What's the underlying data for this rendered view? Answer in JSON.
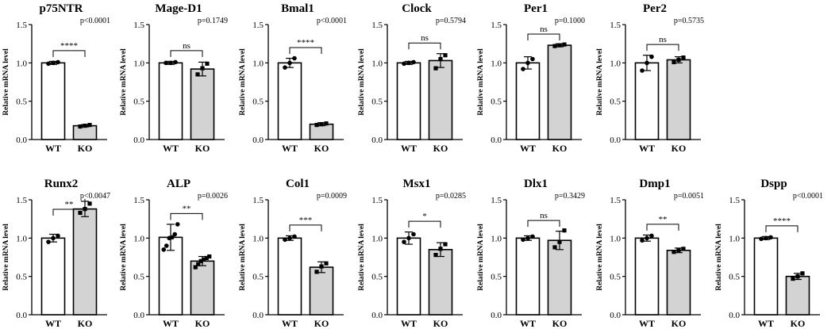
{
  "figure_ylabel": "Relative mRNA  level",
  "chart_data": [
    {
      "type": "bar",
      "title": "p75NTR",
      "categories": [
        "WT",
        "KO"
      ],
      "values": [
        1.0,
        0.18
      ],
      "errors": [
        0.02,
        0.015
      ],
      "points": [
        [
          0.99,
          1.0,
          1.01
        ],
        [
          0.17,
          0.18,
          0.19
        ]
      ],
      "ylim": [
        0,
        1.5
      ],
      "yticks": [
        "0.0",
        "0.5",
        "1.0",
        "1.5"
      ],
      "sig": "****",
      "pvalue": "p<0.0001",
      "ylabel": "Relative mRNA  level"
    },
    {
      "type": "bar",
      "title": "Mage-D1",
      "categories": [
        "WT",
        "KO"
      ],
      "values": [
        1.0,
        0.92
      ],
      "errors": [
        0.02,
        0.09
      ],
      "points": [
        [
          1.0,
          1.0,
          1.01
        ],
        [
          0.85,
          0.93,
          0.99
        ]
      ],
      "ylim": [
        0,
        1.5
      ],
      "yticks": [
        "0.0",
        "0.5",
        "1.0",
        "1.5"
      ],
      "sig": "ns",
      "pvalue": "p=0.1749",
      "ylabel": "Relative mRNA  level"
    },
    {
      "type": "bar",
      "title": "Bmal1",
      "categories": [
        "WT",
        "KO"
      ],
      "values": [
        1.0,
        0.2
      ],
      "errors": [
        0.06,
        0.02
      ],
      "points": [
        [
          0.94,
          1.0,
          1.06
        ],
        [
          0.19,
          0.2,
          0.21
        ]
      ],
      "ylim": [
        0,
        1.5
      ],
      "yticks": [
        "0.0",
        "0.5",
        "1.0",
        "1.5"
      ],
      "sig": "****",
      "pvalue": "p<0.0001",
      "ylabel": "Relative mRNA  level"
    },
    {
      "type": "bar",
      "title": "Clock",
      "categories": [
        "WT",
        "KO"
      ],
      "values": [
        1.0,
        1.03
      ],
      "errors": [
        0.02,
        0.09
      ],
      "points": [
        [
          0.99,
          1.0,
          1.01
        ],
        [
          0.93,
          1.05,
          1.1
        ]
      ],
      "ylim": [
        0,
        1.5
      ],
      "yticks": [
        "0.0",
        "0.5",
        "1.0",
        "1.5"
      ],
      "sig": "ns",
      "pvalue": "p=0.5794",
      "ylabel": "Relative mRNA  level"
    },
    {
      "type": "bar",
      "title": "Per1",
      "categories": [
        "WT",
        "KO"
      ],
      "values": [
        1.0,
        1.23
      ],
      "errors": [
        0.08,
        0.02
      ],
      "points": [
        [
          0.92,
          1.0,
          1.05
        ],
        [
          1.22,
          1.23,
          1.24
        ]
      ],
      "ylim": [
        0,
        1.5
      ],
      "yticks": [
        "0.0",
        "0.5",
        "1.0",
        "1.5"
      ],
      "sig": "ns",
      "pvalue": "p=0.1000",
      "ylabel": "Relative mRNA  level"
    },
    {
      "type": "bar",
      "title": "Per2",
      "categories": [
        "WT",
        "KO"
      ],
      "values": [
        1.0,
        1.04
      ],
      "errors": [
        0.1,
        0.04
      ],
      "points": [
        [
          0.9,
          1.0,
          1.08
        ],
        [
          1.01,
          1.04,
          1.07
        ]
      ],
      "ylim": [
        0,
        1.5
      ],
      "yticks": [
        "0.0",
        "0.5",
        "1.0",
        "1.5"
      ],
      "sig": "ns",
      "pvalue": "p=0.5735",
      "ylabel": "Relative mRNA  level"
    },
    {
      "type": "bar",
      "title": "Runx2",
      "categories": [
        "WT",
        "KO"
      ],
      "values": [
        1.0,
        1.38
      ],
      "errors": [
        0.05,
        0.1
      ],
      "points": [
        [
          0.95,
          1.0,
          1.03
        ],
        [
          1.33,
          1.38,
          1.45
        ]
      ],
      "ylim": [
        0,
        1.5
      ],
      "yticks": [
        "0.0",
        "0.5",
        "1.0",
        "1.5"
      ],
      "sig": "**",
      "pvalue": "p<0.0047",
      "ylabel": "Relative mRNA  level"
    },
    {
      "type": "bar",
      "title": "ALP",
      "categories": [
        "WT",
        "KO"
      ],
      "values": [
        1.01,
        0.7
      ],
      "errors": [
        0.17,
        0.06
      ],
      "points": [
        [
          0.85,
          0.9,
          1.0,
          1.01,
          1.05,
          1.18
        ],
        [
          0.62,
          0.66,
          0.7,
          0.72,
          0.74,
          0.76
        ]
      ],
      "ylim": [
        0,
        1.5
      ],
      "yticks": [
        "0.0",
        "0.5",
        "1.0",
        "1.5"
      ],
      "sig": "**",
      "pvalue": "p=0.0026",
      "ylabel": "Relative mRNA  level"
    },
    {
      "type": "bar",
      "title": "Col1",
      "categories": [
        "WT",
        "KO"
      ],
      "values": [
        1.0,
        0.62
      ],
      "errors": [
        0.03,
        0.07
      ],
      "points": [
        [
          0.98,
          1.0,
          1.02
        ],
        [
          0.56,
          0.63,
          0.67
        ]
      ],
      "ylim": [
        0,
        1.5
      ],
      "yticks": [
        "0.0",
        "0.5",
        "1.0",
        "1.5"
      ],
      "sig": "***",
      "pvalue": "p=0.0009",
      "ylabel": "Relative mRNA  level"
    },
    {
      "type": "bar",
      "title": "Msx1",
      "categories": [
        "WT",
        "KO"
      ],
      "values": [
        1.0,
        0.85
      ],
      "errors": [
        0.08,
        0.09
      ],
      "points": [
        [
          0.95,
          1.0,
          1.05
        ],
        [
          0.78,
          0.86,
          0.92
        ]
      ],
      "ylim": [
        0,
        1.5
      ],
      "yticks": [
        "0.0",
        "0.5",
        "1.0",
        "1.5"
      ],
      "sig": "*",
      "pvalue": "p=0.0285",
      "ylabel": "Relative mRNA  level"
    },
    {
      "type": "bar",
      "title": "Dlx1",
      "categories": [
        "WT",
        "KO"
      ],
      "values": [
        1.0,
        0.97
      ],
      "errors": [
        0.03,
        0.12
      ],
      "points": [
        [
          0.98,
          1.0,
          1.02
        ],
        [
          0.88,
          0.95,
          1.1
        ]
      ],
      "ylim": [
        0,
        1.5
      ],
      "yticks": [
        "0.0",
        "0.5",
        "1.0",
        "1.5"
      ],
      "sig": "ns",
      "pvalue": "p=0.3429",
      "ylabel": "Relative mRNA  level"
    },
    {
      "type": "bar",
      "title": "Dmp1",
      "categories": [
        "WT",
        "KO"
      ],
      "values": [
        1.0,
        0.84
      ],
      "errors": [
        0.04,
        0.03
      ],
      "points": [
        [
          0.97,
          1.0,
          1.03
        ],
        [
          0.82,
          0.84,
          0.86
        ]
      ],
      "ylim": [
        0,
        1.5
      ],
      "yticks": [
        "0.0",
        "0.5",
        "1.0",
        "1.5"
      ],
      "sig": "**",
      "pvalue": "p=0.0051",
      "ylabel": "Relative mRNA  level"
    },
    {
      "type": "bar",
      "title": "Dspp",
      "categories": [
        "WT",
        "KO"
      ],
      "values": [
        1.0,
        0.5
      ],
      "errors": [
        0.02,
        0.04
      ],
      "points": [
        [
          0.99,
          1.0,
          1.01
        ],
        [
          0.47,
          0.5,
          0.54
        ]
      ],
      "ylim": [
        0,
        1.5
      ],
      "yticks": [
        "0.0",
        "0.5",
        "1.0",
        "1.5"
      ],
      "sig": "****",
      "pvalue": "p<0.0001",
      "ylabel": "Relative mRNA  level"
    }
  ]
}
